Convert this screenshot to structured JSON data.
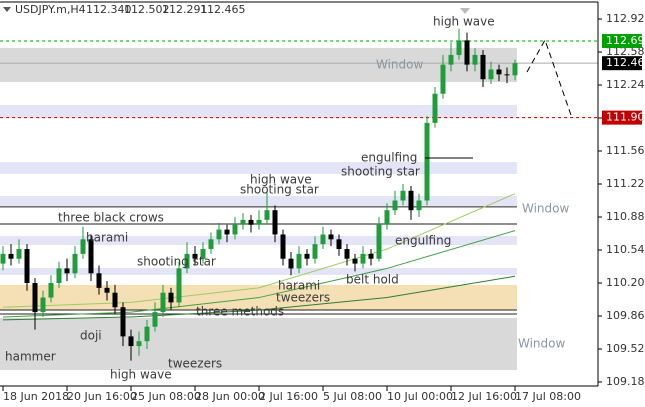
{
  "chart_data": {
    "type": "candlestick",
    "header": {
      "symbol": "USDJPY.m,H4",
      "ohlc": [
        "112.340",
        "112.502",
        "112.291",
        "112.465"
      ]
    },
    "categories": [
      "18 Jun 2018",
      null,
      null,
      null,
      null,
      null,
      null,
      null,
      "20 Jun 16:00",
      null,
      null,
      null,
      null,
      null,
      null,
      null,
      "25 Jun 08:00",
      null,
      null,
      null,
      null,
      null,
      null,
      null,
      "28 Jun 00:00",
      null,
      null,
      null,
      null,
      null,
      null,
      null,
      "2 Jul 16:00",
      null,
      null,
      null,
      null,
      null,
      null,
      null,
      "5 Jul 08:00",
      null,
      null,
      null,
      null,
      null,
      null,
      null,
      "10 Jul 00:00",
      null,
      null,
      null,
      null,
      null,
      null,
      null,
      "12 Jul 16:00",
      null,
      null,
      null,
      null,
      null,
      null,
      null,
      "17 Jul 08:00"
    ],
    "open": [
      110.4,
      110.5,
      110.45,
      110.55,
      110.2,
      109.9,
      110.05,
      110.2,
      110.35,
      110.3,
      110.5,
      110.65,
      110.3,
      110.15,
      110.1,
      109.95,
      109.65,
      109.55,
      109.6,
      109.75,
      109.9,
      110.1,
      110.0,
      110.35,
      110.5,
      110.45,
      110.55,
      110.65,
      110.75,
      110.7,
      110.8,
      110.85,
      110.8,
      110.85,
      110.95,
      110.7,
      110.45,
      110.35,
      110.5,
      110.45,
      110.6,
      110.7,
      110.65,
      110.55,
      110.45,
      110.4,
      110.5,
      110.45,
      110.8,
      110.95,
      111.05,
      111.15,
      110.95,
      111.05,
      111.85,
      112.15,
      112.45,
      112.55,
      112.7,
      112.45,
      112.55,
      112.3,
      112.4,
      112.35,
      112.34
    ],
    "high": [
      110.58,
      110.6,
      110.65,
      110.6,
      110.25,
      110.12,
      110.28,
      110.42,
      110.45,
      110.58,
      110.78,
      110.7,
      110.38,
      110.22,
      110.18,
      110.0,
      109.72,
      109.7,
      109.82,
      110.0,
      110.18,
      110.15,
      110.42,
      110.62,
      110.58,
      110.62,
      110.72,
      110.82,
      110.8,
      110.88,
      110.92,
      110.9,
      110.95,
      111.15,
      111.0,
      110.75,
      110.52,
      110.58,
      110.55,
      110.68,
      110.78,
      110.75,
      110.7,
      110.6,
      110.5,
      110.58,
      110.55,
      110.88,
      111.02,
      111.15,
      111.22,
      111.2,
      111.12,
      111.92,
      112.22,
      112.55,
      112.68,
      112.82,
      112.78,
      112.62,
      112.6,
      112.48,
      112.45,
      112.42,
      112.502
    ],
    "low": [
      110.33,
      110.38,
      110.4,
      110.12,
      109.72,
      109.85,
      110.0,
      110.15,
      110.22,
      110.25,
      110.45,
      110.22,
      110.08,
      110.02,
      109.88,
      109.55,
      109.4,
      109.45,
      109.52,
      109.7,
      109.85,
      109.92,
      109.95,
      110.3,
      110.38,
      110.4,
      110.5,
      110.6,
      110.62,
      110.65,
      110.75,
      110.72,
      110.75,
      110.8,
      110.62,
      110.38,
      110.28,
      110.3,
      110.38,
      110.4,
      110.55,
      110.58,
      110.48,
      110.38,
      110.32,
      110.35,
      110.38,
      110.42,
      110.75,
      110.9,
      111.0,
      110.85,
      110.88,
      111.0,
      111.8,
      112.1,
      112.38,
      112.5,
      112.38,
      112.38,
      112.22,
      112.25,
      112.28,
      112.26,
      112.291
    ],
    "close": [
      110.5,
      110.45,
      110.55,
      110.2,
      109.9,
      110.05,
      110.2,
      110.35,
      110.3,
      110.5,
      110.65,
      110.3,
      110.15,
      110.1,
      109.95,
      109.65,
      109.55,
      109.6,
      109.75,
      109.9,
      110.1,
      110.0,
      110.35,
      110.5,
      110.45,
      110.55,
      110.65,
      110.75,
      110.7,
      110.8,
      110.85,
      110.8,
      110.85,
      110.95,
      110.7,
      110.45,
      110.35,
      110.5,
      110.45,
      110.6,
      110.7,
      110.65,
      110.55,
      110.45,
      110.4,
      110.5,
      110.45,
      110.8,
      110.95,
      111.05,
      111.15,
      110.95,
      111.05,
      111.85,
      112.15,
      112.45,
      112.55,
      112.7,
      112.45,
      112.55,
      112.3,
      112.4,
      112.35,
      112.34,
      112.465
    ],
    "up_color": "#1f9d3a",
    "down_color": "#000000",
    "moving_averages": [
      {
        "color": "#9ccc65",
        "x": [
          0,
          16,
          32,
          48,
          64
        ],
        "values": [
          109.95,
          110.0,
          110.15,
          110.55,
          111.12
        ]
      },
      {
        "color": "#43a047",
        "x": [
          0,
          16,
          32,
          48,
          64
        ],
        "values": [
          109.85,
          109.9,
          110.05,
          110.35,
          110.74
        ]
      },
      {
        "color": "#2e7d32",
        "x": [
          0,
          16,
          32,
          48,
          64
        ],
        "values": [
          109.82,
          109.85,
          109.92,
          110.05,
          110.27
        ]
      }
    ],
    "zones": [
      {
        "range": [
          112.271,
          112.622
        ],
        "color": "#d9d9d9"
      },
      {
        "range": [
          111.9,
          112.034
        ],
        "color": "#e4e4f7"
      },
      {
        "range": [
          111.323,
          111.447
        ],
        "color": "#e4e4f7"
      },
      {
        "range": [
          110.994,
          111.097
        ],
        "color": "#e4e4f7"
      },
      {
        "range": [
          110.592,
          110.685
        ],
        "color": "#e4e4f7"
      },
      {
        "range": [
          110.283,
          110.355
        ],
        "color": "#e4e4f7"
      },
      {
        "range": [
          109.922,
          110.18
        ],
        "color": "#f5dfb5"
      },
      {
        "range": [
          109.304,
          109.84
        ],
        "color": "#d9d9d9"
      }
    ],
    "levels": [
      110.984,
      110.808,
      109.922,
      109.881
    ],
    "price_lines": [
      {
        "value": 112.693,
        "label": "112.693",
        "color": "#00a000",
        "dashed": true
      },
      {
        "value": 112.465,
        "label": "112.465",
        "color": "#000000",
        "dashed": false
      },
      {
        "value": 111.904,
        "label": "111.904",
        "color": "#c00000",
        "dashed": true
      }
    ],
    "annotations": [
      "high wave",
      "Window",
      "engulfing",
      "shooting star",
      "high wave",
      "shooting star",
      "Window",
      "three black crows",
      "harami",
      "engulfing",
      "shooting star",
      "harami",
      "belt hold",
      "tweezers",
      "three methods",
      "doji",
      "Window",
      "hammer",
      "tweezers",
      "high wave"
    ],
    "ylim": [
      109.118,
      113.116
    ],
    "yticks": [
      {
        "value": 112.92,
        "label": "112.920"
      },
      {
        "value": 112.58,
        "label": "112.580"
      },
      {
        "value": 112.24,
        "label": "112.240"
      },
      {
        "value": 111.9,
        "label": "111.900"
      },
      {
        "value": 111.56,
        "label": "111.560"
      },
      {
        "value": 111.22,
        "label": "111.220"
      },
      {
        "value": 110.88,
        "label": "110.880"
      },
      {
        "value": 110.54,
        "label": "110.540"
      },
      {
        "value": 110.2,
        "label": "110.200"
      },
      {
        "value": 109.86,
        "label": "109.860"
      },
      {
        "value": 109.52,
        "label": "109.520"
      },
      {
        "value": 109.18,
        "label": "109.180"
      }
    ]
  }
}
